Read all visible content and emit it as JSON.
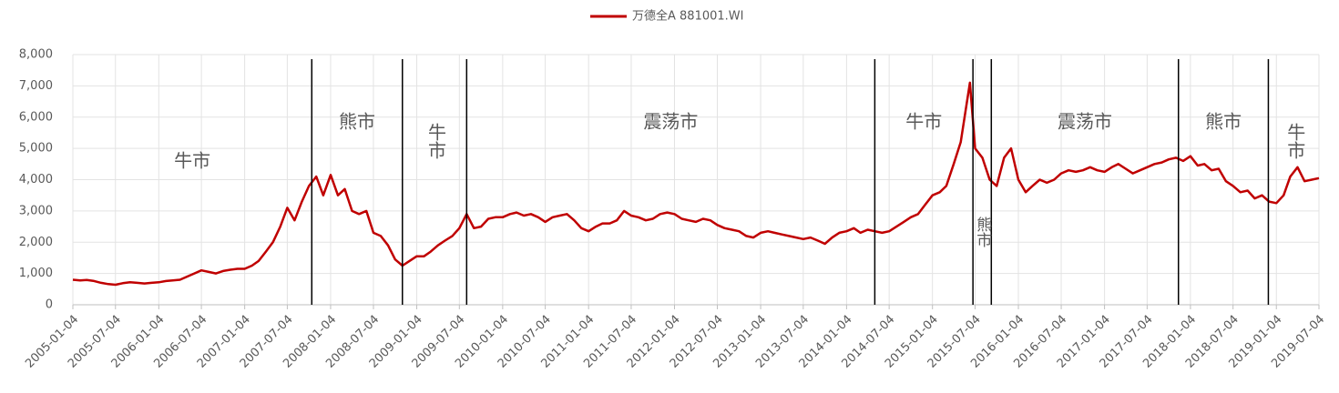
{
  "chart_data": {
    "type": "line",
    "series": [
      {
        "name": "万德全A 881001.WI",
        "color": "#c00000",
        "x": [
          "2005-01-04",
          "2005-02-04",
          "2005-03-04",
          "2005-04-04",
          "2005-05-04",
          "2005-06-04",
          "2005-07-04",
          "2005-08-04",
          "2005-09-04",
          "2005-10-04",
          "2005-11-04",
          "2005-12-04",
          "2006-01-04",
          "2006-02-04",
          "2006-03-04",
          "2006-04-04",
          "2006-05-04",
          "2006-06-04",
          "2006-07-04",
          "2006-08-04",
          "2006-09-04",
          "2006-10-04",
          "2006-11-04",
          "2006-12-04",
          "2007-01-04",
          "2007-02-04",
          "2007-03-04",
          "2007-04-04",
          "2007-05-04",
          "2007-06-04",
          "2007-07-04",
          "2007-08-04",
          "2007-09-04",
          "2007-10-04",
          "2007-11-04",
          "2007-12-04",
          "2008-01-04",
          "2008-02-04",
          "2008-03-04",
          "2008-04-04",
          "2008-05-04",
          "2008-06-04",
          "2008-07-04",
          "2008-08-04",
          "2008-09-04",
          "2008-10-04",
          "2008-11-04",
          "2008-12-04",
          "2009-01-04",
          "2009-02-04",
          "2009-03-04",
          "2009-04-04",
          "2009-05-04",
          "2009-06-04",
          "2009-07-04",
          "2009-08-04",
          "2009-09-04",
          "2009-10-04",
          "2009-11-04",
          "2009-12-04",
          "2010-01-04",
          "2010-02-04",
          "2010-03-04",
          "2010-04-04",
          "2010-05-04",
          "2010-06-04",
          "2010-07-04",
          "2010-08-04",
          "2010-09-04",
          "2010-10-04",
          "2010-11-04",
          "2010-12-04",
          "2011-01-04",
          "2011-02-04",
          "2011-03-04",
          "2011-04-04",
          "2011-05-04",
          "2011-06-04",
          "2011-07-04",
          "2011-08-04",
          "2011-09-04",
          "2011-10-04",
          "2011-11-04",
          "2011-12-04",
          "2012-01-04",
          "2012-02-04",
          "2012-03-04",
          "2012-04-04",
          "2012-05-04",
          "2012-06-04",
          "2012-07-04",
          "2012-08-04",
          "2012-09-04",
          "2012-10-04",
          "2012-11-04",
          "2012-12-04",
          "2013-01-04",
          "2013-02-04",
          "2013-03-04",
          "2013-04-04",
          "2013-05-04",
          "2013-06-04",
          "2013-07-04",
          "2013-08-04",
          "2013-09-04",
          "2013-10-04",
          "2013-11-04",
          "2013-12-04",
          "2014-01-04",
          "2014-02-04",
          "2014-03-04",
          "2014-04-04",
          "2014-05-04",
          "2014-06-04",
          "2014-07-04",
          "2014-08-04",
          "2014-09-04",
          "2014-10-04",
          "2014-11-04",
          "2014-12-04",
          "2015-01-04",
          "2015-02-04",
          "2015-03-04",
          "2015-04-04",
          "2015-05-04",
          "2015-06-12",
          "2015-07-04",
          "2015-08-04",
          "2015-09-04",
          "2015-10-04",
          "2015-11-04",
          "2015-12-04",
          "2016-01-04",
          "2016-02-04",
          "2016-03-04",
          "2016-04-04",
          "2016-05-04",
          "2016-06-04",
          "2016-07-04",
          "2016-08-04",
          "2016-09-04",
          "2016-10-04",
          "2016-11-04",
          "2016-12-04",
          "2017-01-04",
          "2017-02-04",
          "2017-03-04",
          "2017-04-04",
          "2017-05-04",
          "2017-06-04",
          "2017-07-04",
          "2017-08-04",
          "2017-09-04",
          "2017-10-04",
          "2017-11-04",
          "2017-12-04",
          "2018-01-04",
          "2018-02-04",
          "2018-03-04",
          "2018-04-04",
          "2018-05-04",
          "2018-06-04",
          "2018-07-04",
          "2018-08-04",
          "2018-09-04",
          "2018-10-04",
          "2018-11-04",
          "2018-12-04",
          "2019-01-04",
          "2019-02-04",
          "2019-03-04",
          "2019-04-04",
          "2019-05-04",
          "2019-06-04",
          "2019-07-04"
        ],
        "values": [
          800,
          780,
          790,
          760,
          700,
          660,
          640,
          690,
          720,
          700,
          680,
          700,
          720,
          760,
          780,
          800,
          900,
          1000,
          1100,
          1050,
          1000,
          1080,
          1120,
          1150,
          1150,
          1250,
          1400,
          1700,
          2000,
          2500,
          3100,
          2700,
          3300,
          3800,
          4100,
          3500,
          4150,
          3500,
          3700,
          3000,
          2900,
          3000,
          2300,
          2200,
          1900,
          1450,
          1250,
          1400,
          1550,
          1550,
          1700,
          1900,
          2050,
          2200,
          2450,
          2900,
          2450,
          2500,
          2750,
          2800,
          2800,
          2900,
          2950,
          2850,
          2900,
          2800,
          2650,
          2800,
          2850,
          2900,
          2700,
          2450,
          2350,
          2500,
          2600,
          2600,
          2700,
          3000,
          2850,
          2800,
          2700,
          2750,
          2900,
          2950,
          2900,
          2750,
          2700,
          2650,
          2750,
          2700,
          2550,
          2450,
          2400,
          2350,
          2200,
          2150,
          2300,
          2350,
          2300,
          2250,
          2200,
          2150,
          2100,
          2150,
          2050,
          1950,
          2150,
          2300,
          2350,
          2450,
          2300,
          2400,
          2350,
          2300,
          2350,
          2500,
          2650,
          2800,
          2900,
          3200,
          3500,
          3600,
          3800,
          4500,
          5200,
          7100,
          5000,
          4700,
          4000,
          3800,
          4700,
          5000,
          4000,
          3600,
          3800,
          4000,
          3900,
          4000,
          4200,
          4300,
          4250,
          4300,
          4400,
          4300,
          4250,
          4400,
          4500,
          4350,
          4200,
          4300,
          4400,
          4500,
          4550,
          4650,
          4700,
          4600,
          4750,
          4450,
          4500,
          4300,
          4350,
          3950,
          3800,
          3600,
          3650,
          3400,
          3500,
          3300,
          3250,
          3500,
          4100,
          4400,
          3950,
          4000,
          4050
        ]
      }
    ],
    "xlim": [
      "2005-01-04",
      "2019-07-04"
    ],
    "xticks": [
      "2005-01-04",
      "2005-07-04",
      "2006-01-04",
      "2006-07-04",
      "2007-01-04",
      "2007-07-04",
      "2008-01-04",
      "2008-07-04",
      "2009-01-04",
      "2009-07-04",
      "2010-01-04",
      "2010-07-04",
      "2011-01-04",
      "2011-07-04",
      "2012-01-04",
      "2012-07-04",
      "2013-01-04",
      "2013-07-04",
      "2014-01-04",
      "2014-07-04",
      "2015-01-04",
      "2015-07-04",
      "2016-01-04",
      "2016-07-04",
      "2017-01-04",
      "2017-07-04",
      "2018-01-04",
      "2018-07-04",
      "2019-01-04",
      "2019-07-04"
    ],
    "ylim": [
      0,
      8000
    ],
    "yticks": [
      0,
      {
        "value": 1000,
        "label": "1,000"
      },
      {
        "value": 2000,
        "label": "2,000"
      },
      {
        "value": 3000,
        "label": "3,000"
      },
      {
        "value": 4000,
        "label": "4,000"
      },
      {
        "value": 5000,
        "label": "5,000"
      },
      {
        "value": 6000,
        "label": "6,000"
      },
      {
        "value": 7000,
        "label": "7,000"
      },
      {
        "value": 8000,
        "label": "8,000"
      }
    ],
    "grid": true,
    "legend": "top",
    "regime_lines": [
      "2007-10-16",
      "2008-11-04",
      "2009-08-04",
      "2014-05-04",
      "2015-06-25",
      "2015-09-11",
      "2017-11-14",
      "2018-12-01"
    ],
    "annotations": [
      {
        "text": "牛市",
        "color": "#c00000"
      },
      {
        "text": "熊市",
        "color": "#000000"
      },
      {
        "text": "牛市",
        "color": "#c00000"
      },
      {
        "text": "震荡市",
        "color": "#4472c4"
      },
      {
        "text": "牛市",
        "color": "#c00000"
      },
      {
        "text": "熊市",
        "color": "#000000"
      },
      {
        "text": "震荡市",
        "color": "#4472c4"
      },
      {
        "text": "熊市",
        "color": "#000000"
      },
      {
        "text": "牛市",
        "color": "#c00000"
      }
    ]
  }
}
